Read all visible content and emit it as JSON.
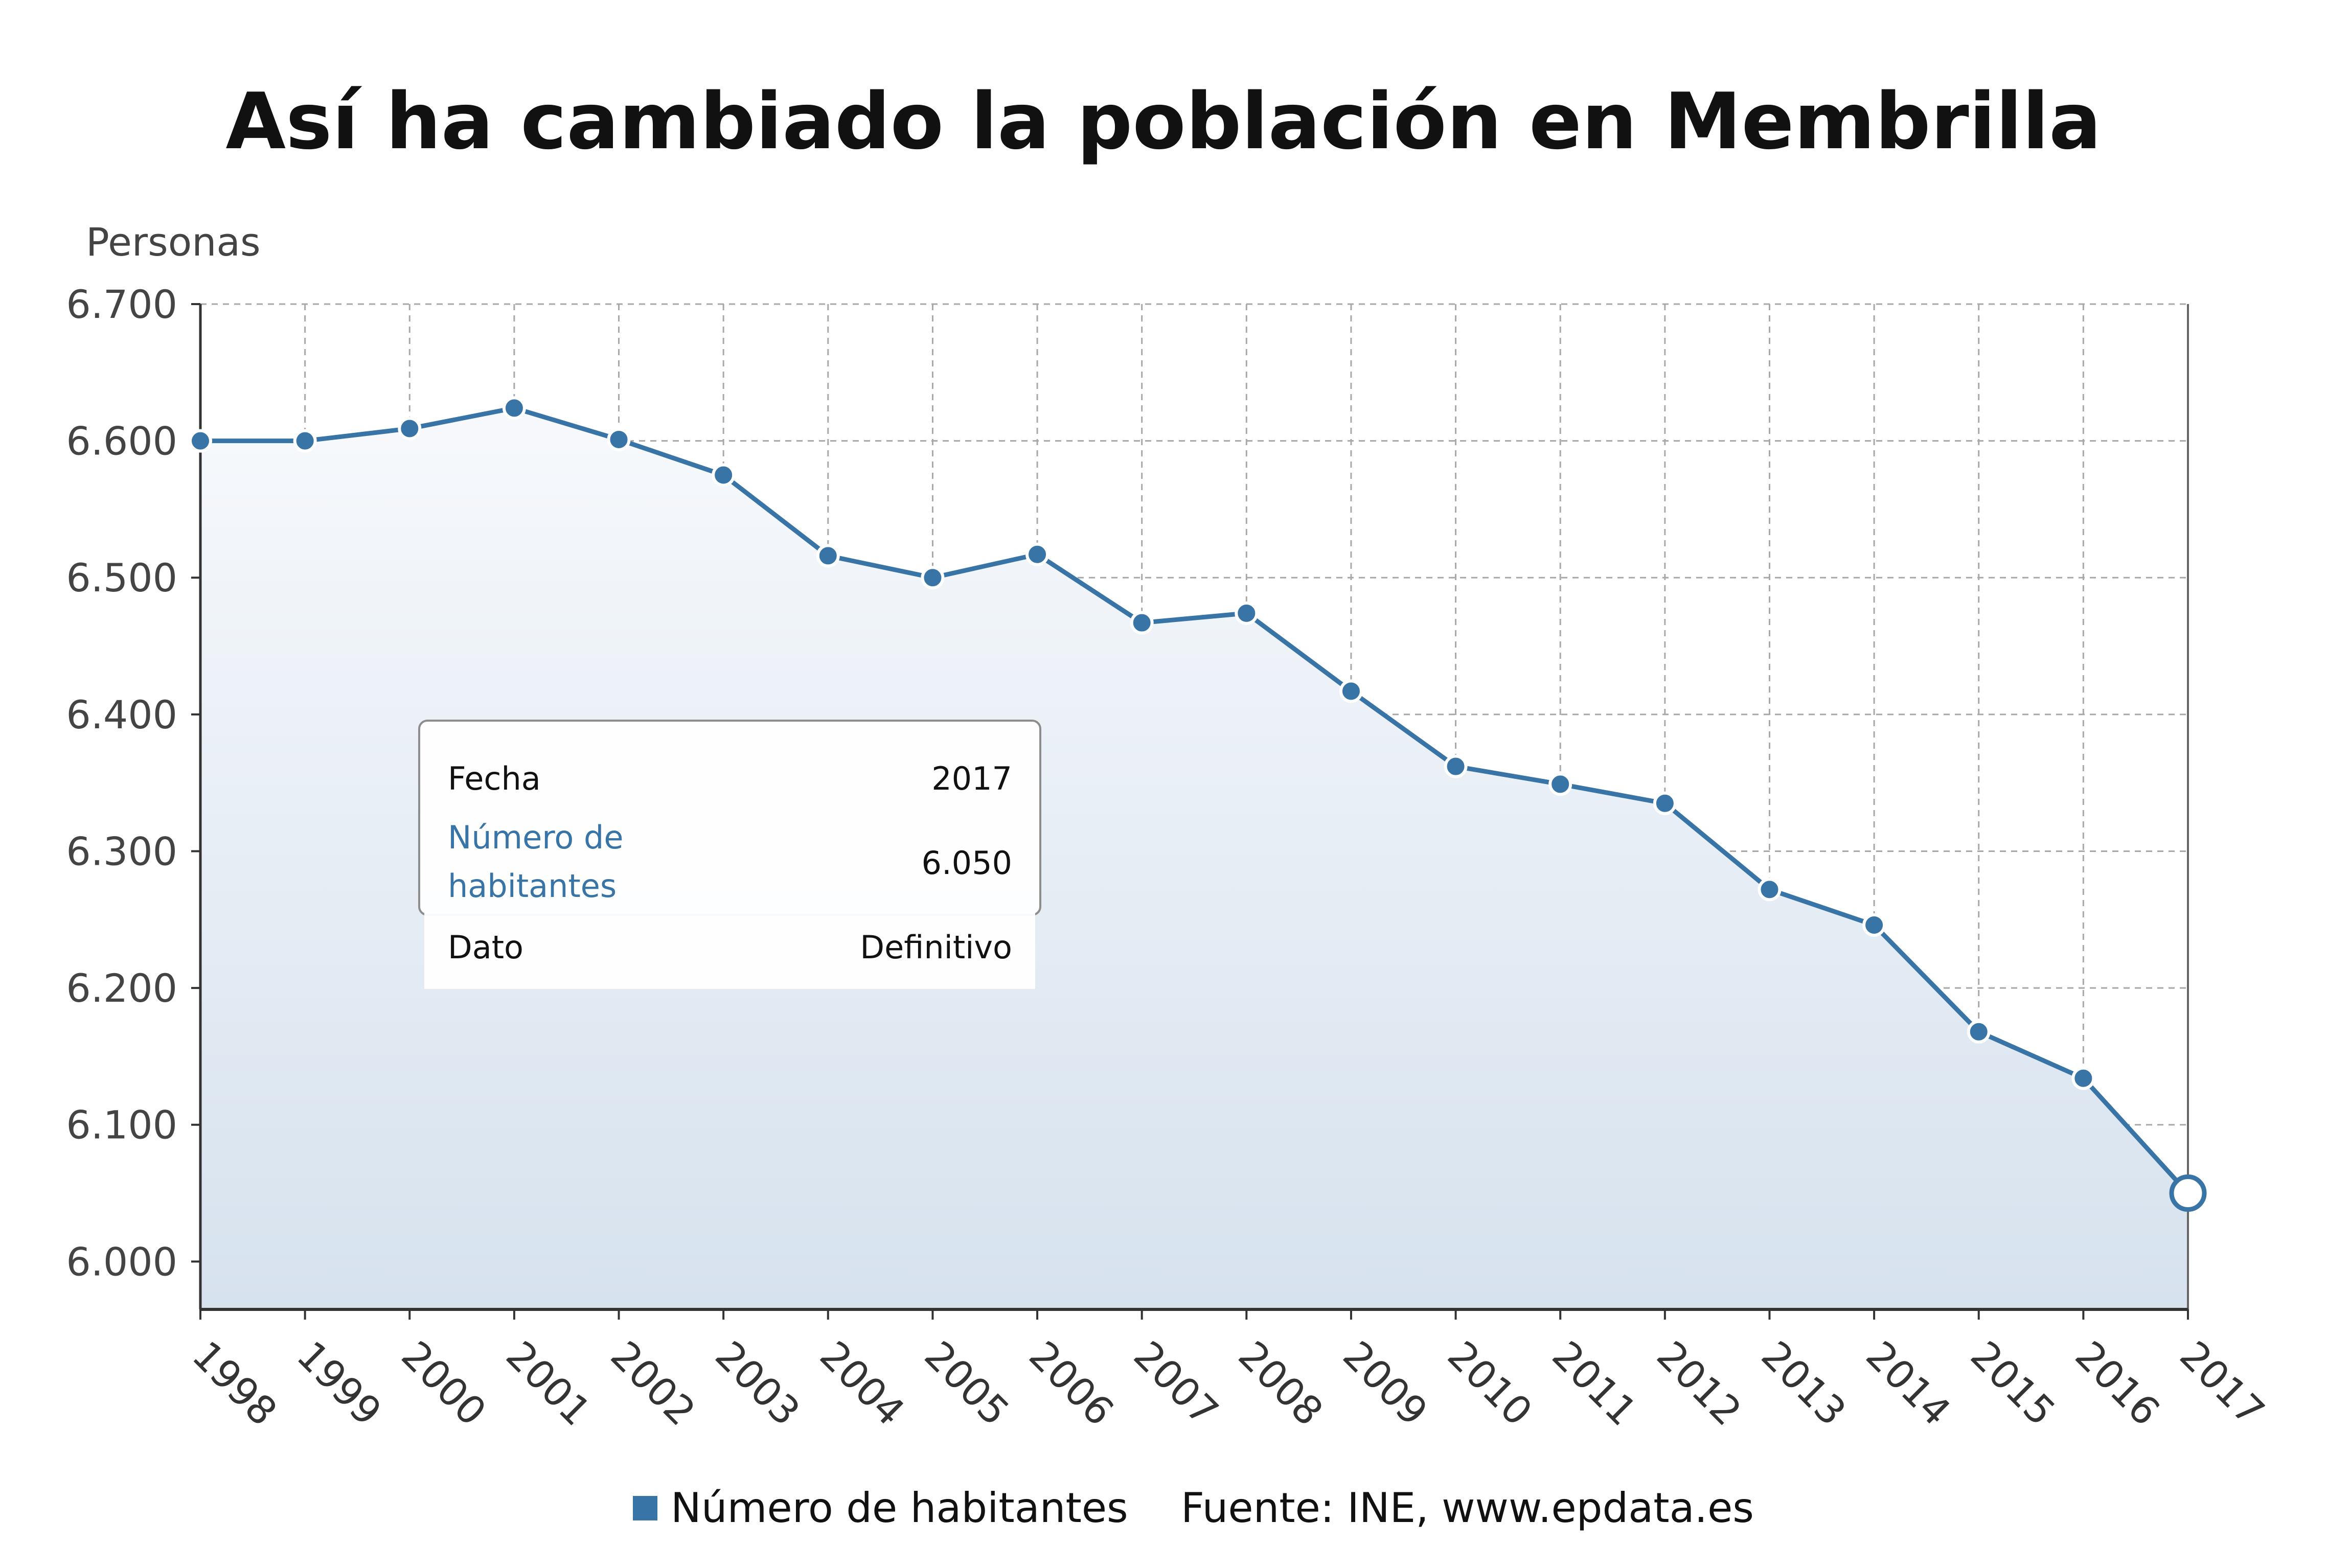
{
  "chart_data": {
    "type": "area",
    "title": "Así ha cambiado la población en Membrilla",
    "ylabel": "Personas",
    "xlabel": "",
    "ylim": [
      5965,
      6700
    ],
    "yticks": [
      6000,
      6100,
      6200,
      6300,
      6400,
      6500,
      6600,
      6700
    ],
    "ytick_labels": [
      "6.000",
      "6.100",
      "6.200",
      "6.300",
      "6.400",
      "6.500",
      "6.600",
      "6.700"
    ],
    "categories": [
      "1998",
      "1999",
      "2000",
      "2001",
      "2002",
      "2003",
      "2004",
      "2005",
      "2006",
      "2007",
      "2008",
      "2009",
      "2010",
      "2011",
      "2012",
      "2013",
      "2014",
      "2015",
      "2016",
      "2017"
    ],
    "series": [
      {
        "name": "Número de habitantes",
        "values": [
          6600,
          6600,
          6609,
          6624,
          6601,
          6575,
          6516,
          6500,
          6517,
          6467,
          6474,
          6417,
          6362,
          6349,
          6335,
          6272,
          6246,
          6168,
          6134,
          6050
        ]
      }
    ],
    "grid": true,
    "colors": {
      "line": "#3874a6",
      "area_top": "#f7f9fc",
      "area_bottom": "#d6e2ee"
    },
    "tooltip": {
      "rows": [
        {
          "label": "Fecha",
          "value": "2017"
        },
        {
          "label": "Número de habitantes",
          "label_line1": "Número de",
          "label_line2": "habitantes",
          "value": "6.050"
        },
        {
          "label": "Dato",
          "value": "Definitivo"
        }
      ]
    },
    "legend": {
      "label": "Número de habitantes",
      "placement": "bottom"
    },
    "source": "Fuente: INE, www.epdata.es"
  }
}
